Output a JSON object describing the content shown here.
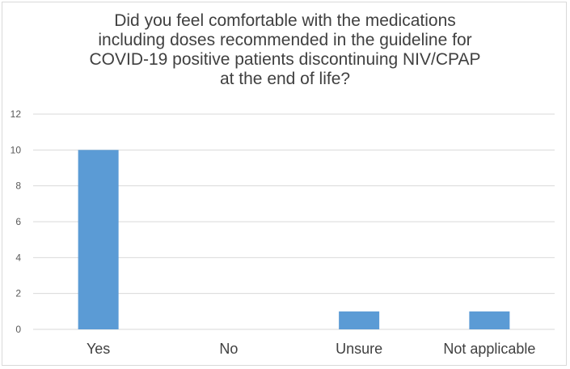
{
  "chart_data": {
    "type": "bar",
    "title_lines": [
      "Did you feel comfortable with the medications",
      "including doses recommended in the guideline for",
      "COVID-19 positive patients discontinuing NIV/CPAP",
      "at the end of life?"
    ],
    "categories": [
      "Yes",
      "No",
      "Unsure",
      "Not applicable"
    ],
    "values": [
      10,
      0,
      1,
      1
    ],
    "xlabel": "",
    "ylabel": "",
    "ylim": [
      0,
      12
    ],
    "yticks": [
      0,
      2,
      4,
      6,
      8,
      10,
      12
    ],
    "grid": true,
    "legend": "none",
    "bar_color": "#5b9bd5",
    "grid_color": "#d9d9d9"
  }
}
